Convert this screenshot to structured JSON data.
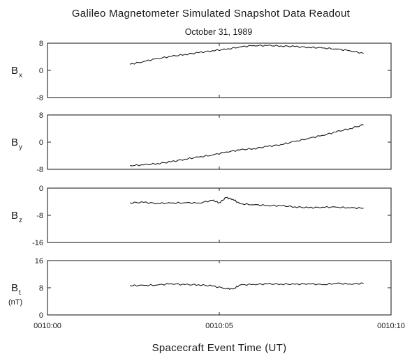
{
  "chart_data": {
    "type": "line",
    "title": "Galileo Magnetometer Simulated Snapshot Data Readout",
    "subtitle": "October 31, 1989",
    "xlabel": "Spacecraft Event Time (UT)",
    "xlim": [
      0,
      10
    ],
    "x_ticks": [
      {
        "value": 0,
        "label": "0010:00"
      },
      {
        "value": 5,
        "label": "0010:05"
      },
      {
        "value": 10,
        "label": "0010:10"
      }
    ],
    "grid": false,
    "panels": [
      {
        "ylabel_main": "B",
        "ylabel_sub": "x",
        "ylabel_unit": "",
        "ylim": [
          -8,
          8
        ],
        "y_ticks": [
          8,
          0,
          -8
        ],
        "series": {
          "x": [
            2.4,
            2.8,
            3.2,
            3.6,
            4.0,
            4.4,
            4.8,
            5.2,
            5.6,
            6.0,
            6.4,
            6.8,
            7.2,
            7.6,
            8.0,
            8.4,
            8.8,
            9.2
          ],
          "y": [
            1.8,
            2.6,
            3.5,
            4.1,
            4.7,
            5.2,
            5.8,
            6.2,
            6.9,
            7.3,
            7.3,
            7.2,
            7.0,
            6.8,
            6.6,
            6.3,
            5.8,
            5.0
          ]
        }
      },
      {
        "ylabel_main": "B",
        "ylabel_sub": "y",
        "ylabel_unit": "",
        "ylim": [
          -8,
          8
        ],
        "y_ticks": [
          8,
          0,
          -8
        ],
        "series": {
          "x": [
            2.4,
            2.8,
            3.2,
            3.6,
            4.0,
            4.4,
            4.8,
            5.2,
            5.6,
            6.0,
            6.4,
            6.8,
            7.2,
            7.6,
            8.0,
            8.4,
            8.8,
            9.2
          ],
          "y": [
            -6.9,
            -6.7,
            -6.3,
            -5.8,
            -5.0,
            -4.4,
            -3.8,
            -2.9,
            -2.3,
            -1.9,
            -1.3,
            -0.7,
            0.2,
            1.1,
            2.0,
            3.0,
            4.0,
            5.1
          ]
        }
      },
      {
        "ylabel_main": "B",
        "ylabel_sub": "z",
        "ylabel_unit": "",
        "ylim": [
          -16,
          0
        ],
        "y_ticks": [
          0,
          -8,
          -16
        ],
        "series": {
          "x": [
            2.4,
            2.8,
            3.2,
            3.6,
            4.0,
            4.4,
            4.8,
            5.0,
            5.2,
            5.4,
            5.6,
            6.0,
            6.4,
            6.8,
            7.2,
            7.6,
            8.0,
            8.4,
            8.8,
            9.2
          ],
          "y": [
            -4.3,
            -4.2,
            -4.5,
            -4.4,
            -4.3,
            -4.4,
            -3.6,
            -4.3,
            -2.8,
            -3.3,
            -4.6,
            -4.9,
            -5.1,
            -5.2,
            -5.5,
            -5.8,
            -5.6,
            -5.6,
            -5.8,
            -5.9
          ]
        }
      },
      {
        "ylabel_main": "B",
        "ylabel_sub": "t",
        "ylabel_unit": "(nT)",
        "ylim": [
          0,
          16
        ],
        "y_ticks": [
          16,
          8,
          0
        ],
        "series": {
          "x": [
            2.4,
            2.8,
            3.2,
            3.6,
            4.0,
            4.4,
            4.8,
            5.2,
            5.4,
            5.6,
            6.0,
            6.4,
            6.8,
            7.2,
            7.6,
            8.0,
            8.4,
            8.8,
            9.2
          ],
          "y": [
            8.6,
            8.7,
            8.8,
            9.2,
            8.9,
            8.9,
            8.5,
            7.8,
            7.6,
            8.8,
            9.0,
            9.1,
            9.1,
            9.0,
            9.2,
            8.9,
            9.3,
            9.1,
            9.3
          ]
        }
      }
    ]
  }
}
